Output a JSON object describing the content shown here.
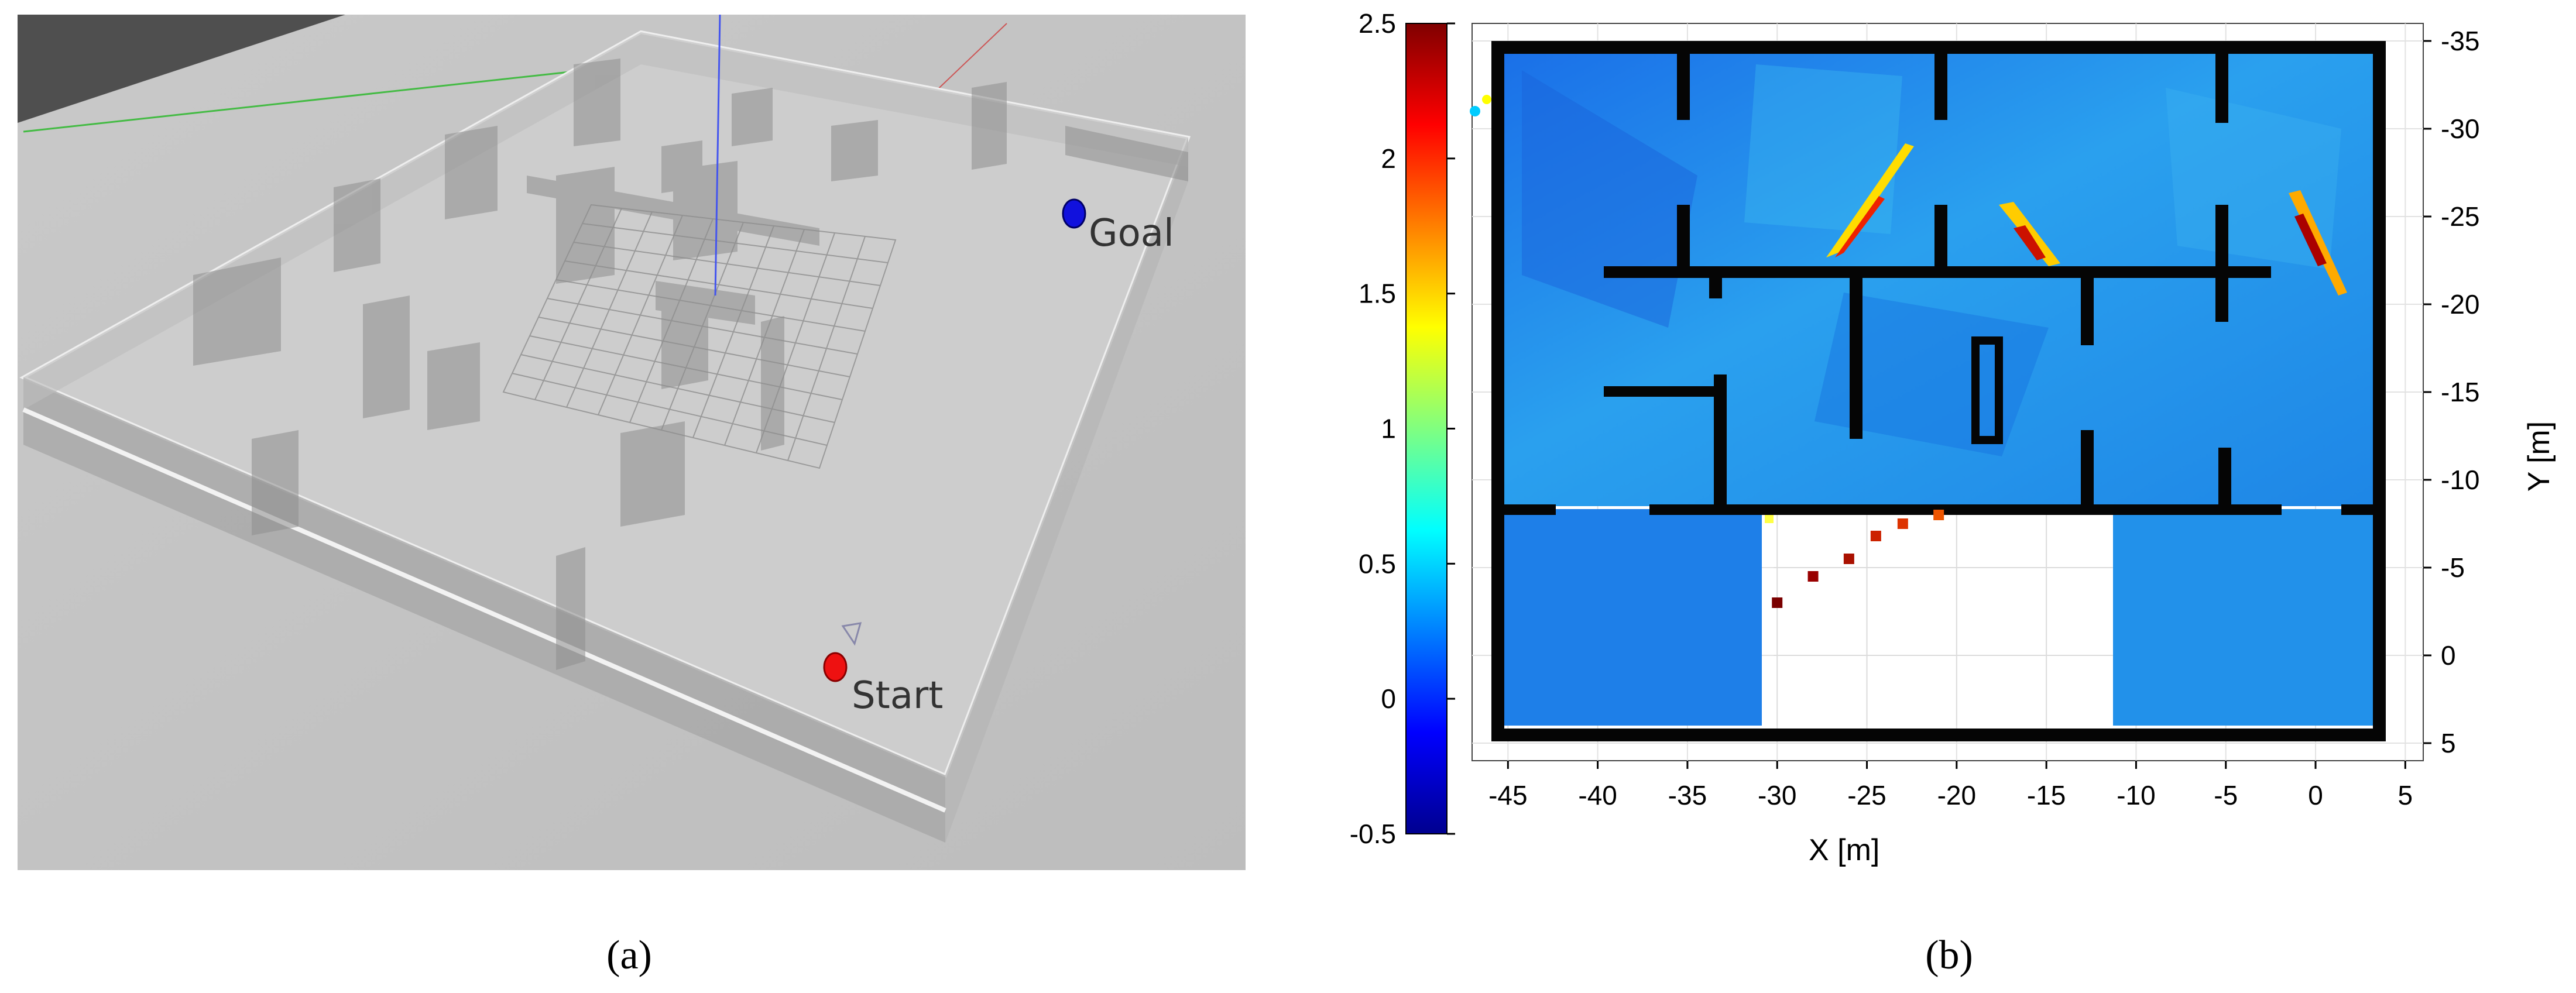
{
  "panel_a": {
    "goal_label": "Goal",
    "start_label": "Start",
    "goal_marker_color": "#1111dd",
    "start_marker_color": "#ee1111"
  },
  "captions": {
    "a": "(a)",
    "b": "(b)"
  },
  "chart_data": {
    "type": "heatmap",
    "title": "",
    "xlabel": "X [m]",
    "ylabel": "Y [m]",
    "xlim": [
      -47,
      6
    ],
    "ylim": [
      6,
      -36
    ],
    "x_ticks": [
      -45,
      -40,
      -35,
      -30,
      -25,
      -20,
      -15,
      -10,
      -5,
      0,
      5
    ],
    "y_ticks": [
      -35,
      -30,
      -25,
      -20,
      -15,
      -10,
      -5,
      0,
      5
    ],
    "colorbar": {
      "min": -0.5,
      "max": 2.5,
      "ticks": [
        2.5,
        2,
        1.5,
        1,
        0.5,
        0,
        -0.5
      ],
      "colormap": "jet"
    },
    "grid": true,
    "trajectory_points": [
      [
        -30,
        -3
      ],
      [
        -28,
        -4.5
      ],
      [
        -26,
        -5.5
      ],
      [
        -24.5,
        -6.8
      ],
      [
        -23,
        -7.5
      ],
      [
        -21,
        -8
      ]
    ]
  }
}
